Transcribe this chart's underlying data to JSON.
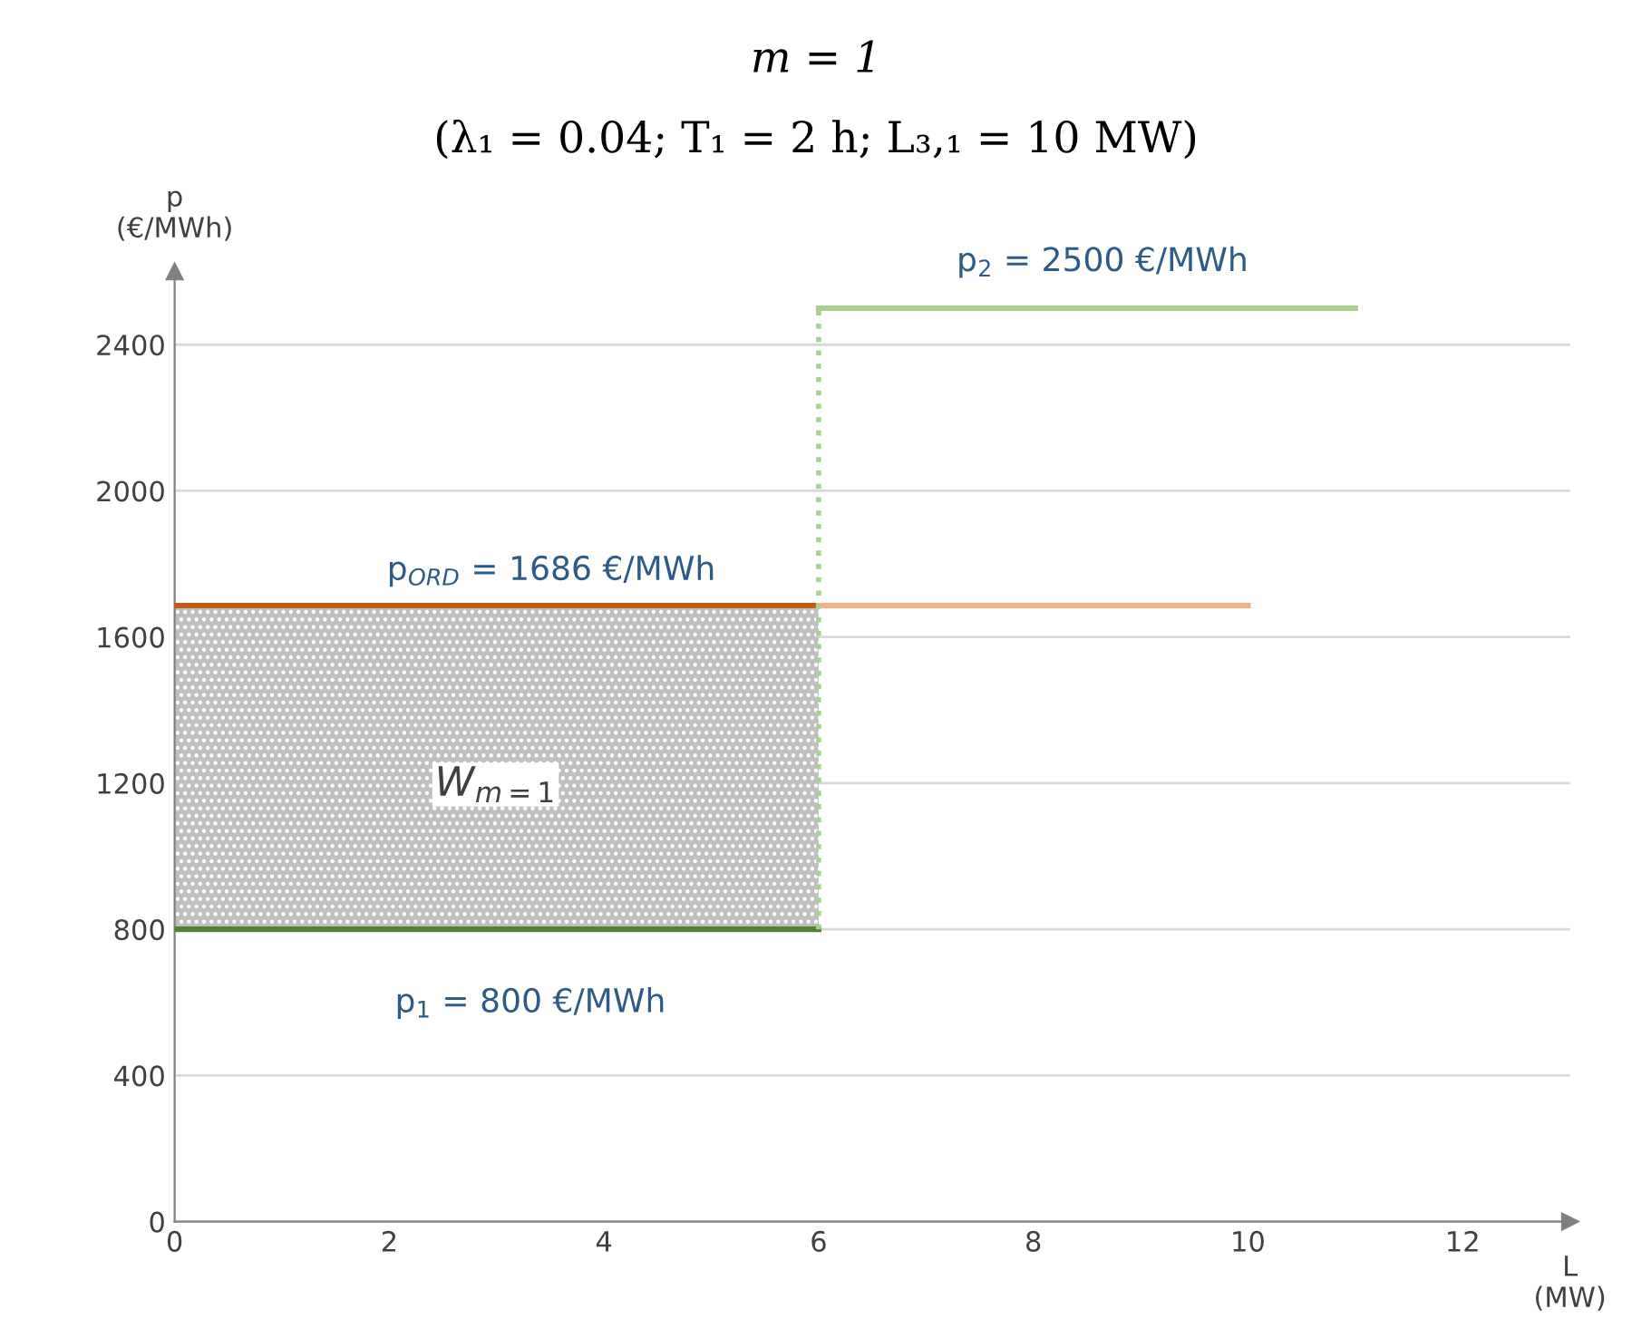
{
  "chart_data": {
    "type": "line",
    "title": "m = 1",
    "subtitle": "(λ₁ = 0.04; T₁ = 2 h; L₃,₁ = 10 MW)",
    "xlabel": "L\n(MW)",
    "ylabel": "p\n(€/MWh)",
    "xlim": [
      0,
      13
    ],
    "ylim": [
      0,
      2600
    ],
    "xticks": [
      0,
      2,
      4,
      6,
      8,
      10,
      12
    ],
    "yticks": [
      0,
      400,
      800,
      1200,
      1600,
      2000,
      2400
    ],
    "grid": "y",
    "series": [
      {
        "x": [
          0,
          6
        ],
        "values": [
          800,
          800
        ],
        "color": "#548235"
      },
      {
        "x": [
          0,
          6
        ],
        "values": [
          1686,
          1686
        ],
        "color": "#c55a11"
      },
      {
        "x": [
          6,
          10
        ],
        "values": [
          1686,
          1686
        ],
        "color": "#f4b183"
      },
      {
        "x": [
          6,
          6
        ],
        "values": [
          800,
          2500
        ],
        "color": "#a9d18e",
        "line_style": "dotted"
      },
      {
        "x": [
          6,
          11
        ],
        "values": [
          2500,
          2500
        ],
        "color": "#a9d18e"
      }
    ],
    "annotations": [
      "p$_{2}$ = 2500 €/MWh",
      "p$_{ORD}$ = 1686 €/MWh",
      "p$_{1}$ = 800 €/MWh",
      "W$_{m=1}$"
    ]
  }
}
